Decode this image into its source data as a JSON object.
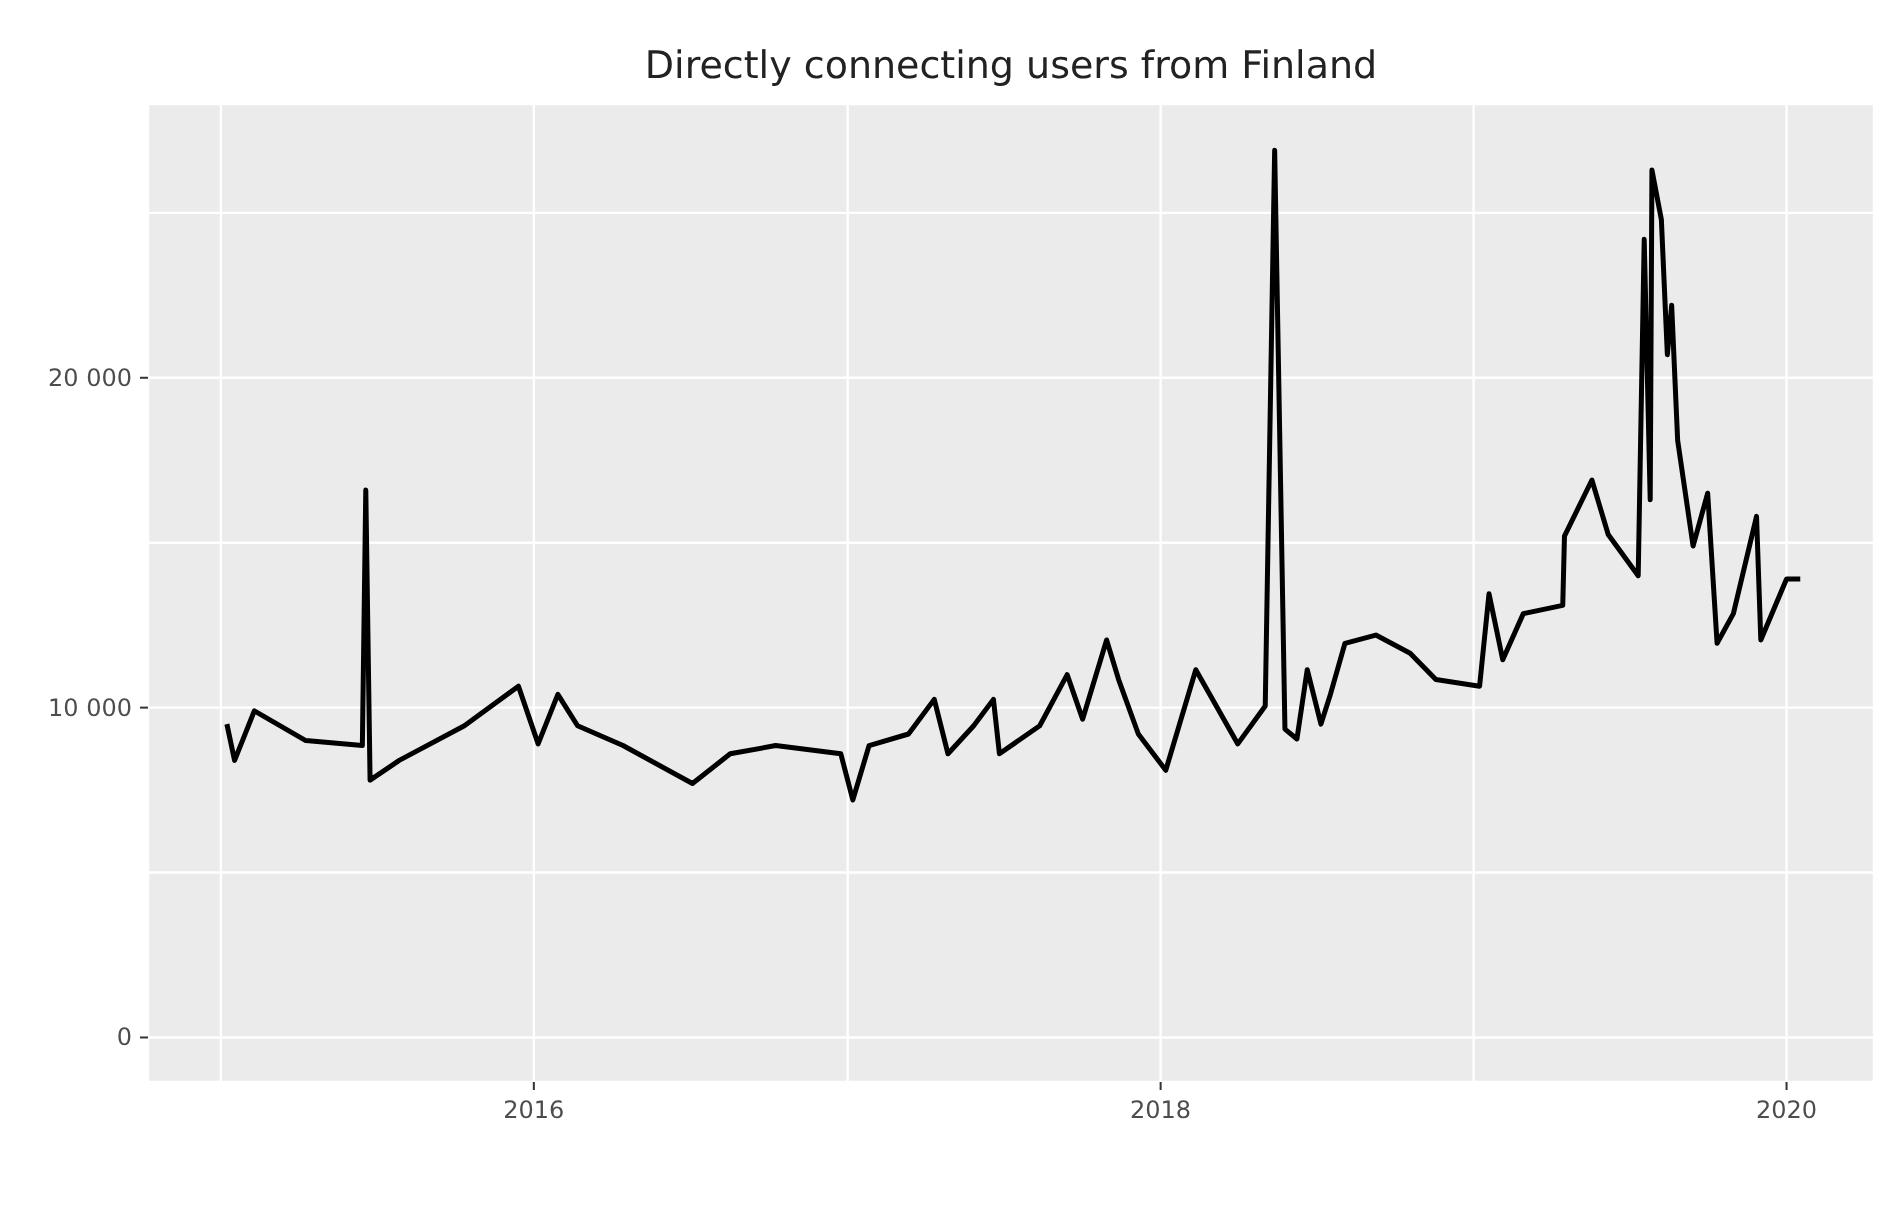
{
  "chart_data": {
    "type": "line",
    "title": "Directly connecting users from Finland",
    "x": [
      "2015-01-08",
      "2015-01-17",
      "2015-02-09",
      "2015-04-10",
      "2015-06-15",
      "2015-06-19",
      "2015-06-24",
      "2015-07-28",
      "2015-10-12",
      "2015-12-14",
      "2016-01-06",
      "2016-01-29",
      "2016-02-21",
      "2016-04-14",
      "2016-07-04",
      "2016-08-17",
      "2016-10-09",
      "2016-12-24",
      "2017-01-07",
      "2017-01-26",
      "2017-03-13",
      "2017-04-12",
      "2017-04-28",
      "2017-05-28",
      "2017-06-20",
      "2017-06-27",
      "2017-08-13",
      "2017-09-14",
      "2017-10-02",
      "2017-10-30",
      "2017-11-13",
      "2017-12-06",
      "2018-01-07",
      "2018-02-11",
      "2018-04-01",
      "2018-05-03",
      "2018-05-14",
      "2018-05-26",
      "2018-06-09",
      "2018-06-21",
      "2018-07-07",
      "2018-07-18",
      "2018-08-04",
      "2018-09-09",
      "2018-10-19",
      "2018-11-18",
      "2019-01-08",
      "2019-01-19",
      "2019-02-04",
      "2019-02-28",
      "2019-04-15",
      "2019-04-17",
      "2019-05-19",
      "2019-06-07",
      "2019-07-12",
      "2019-07-19",
      "2019-07-26",
      "2019-07-28",
      "2019-08-08",
      "2019-08-15",
      "2019-08-20",
      "2019-08-27",
      "2019-09-14",
      "2019-10-01",
      "2019-10-12",
      "2019-10-31",
      "2019-11-27",
      "2019-12-02",
      "2020-01-01",
      "2020-01-17"
    ],
    "series": [
      {
        "color": "#000000",
        "values": [
          9500,
          8400,
          9900,
          9000,
          8850,
          16600,
          7800,
          8400,
          9450,
          10650,
          8900,
          10400,
          9450,
          8850,
          7700,
          8600,
          8850,
          8600,
          7200,
          8850,
          9200,
          10250,
          8600,
          9450,
          10250,
          8600,
          9450,
          11000,
          9650,
          12050,
          10850,
          9200,
          8100,
          11150,
          8900,
          10050,
          26900,
          9350,
          9050,
          11150,
          9500,
          10400,
          11950,
          12200,
          11650,
          10850,
          10650,
          13450,
          11450,
          12850,
          13100,
          15200,
          16900,
          15250,
          14000,
          24200,
          16300,
          26300,
          24800,
          20700,
          22200,
          18100,
          14900,
          16500,
          11950,
          12850,
          15800,
          12050,
          13900,
          13900
        ]
      }
    ],
    "xlim": [
      "2014-10-08",
      "2020-04-12"
    ],
    "xticks": [
      {
        "value": "2015",
        "label": null
      },
      {
        "value": "2016",
        "label": "2016"
      },
      {
        "value": "2017",
        "label": null
      },
      {
        "value": "2018",
        "label": "2018"
      },
      {
        "value": "2019",
        "label": null
      },
      {
        "value": "2020",
        "label": "2020"
      }
    ],
    "ylim": [
      -1350,
      28300
    ],
    "yticks": [
      {
        "value": 0,
        "label": "0"
      },
      {
        "value": 5000,
        "label": null
      },
      {
        "value": 10000,
        "label": "10 000"
      },
      {
        "value": 15000,
        "label": null
      },
      {
        "value": 20000,
        "label": "20 000"
      },
      {
        "value": 25000,
        "label": null
      }
    ],
    "grid": true
  }
}
